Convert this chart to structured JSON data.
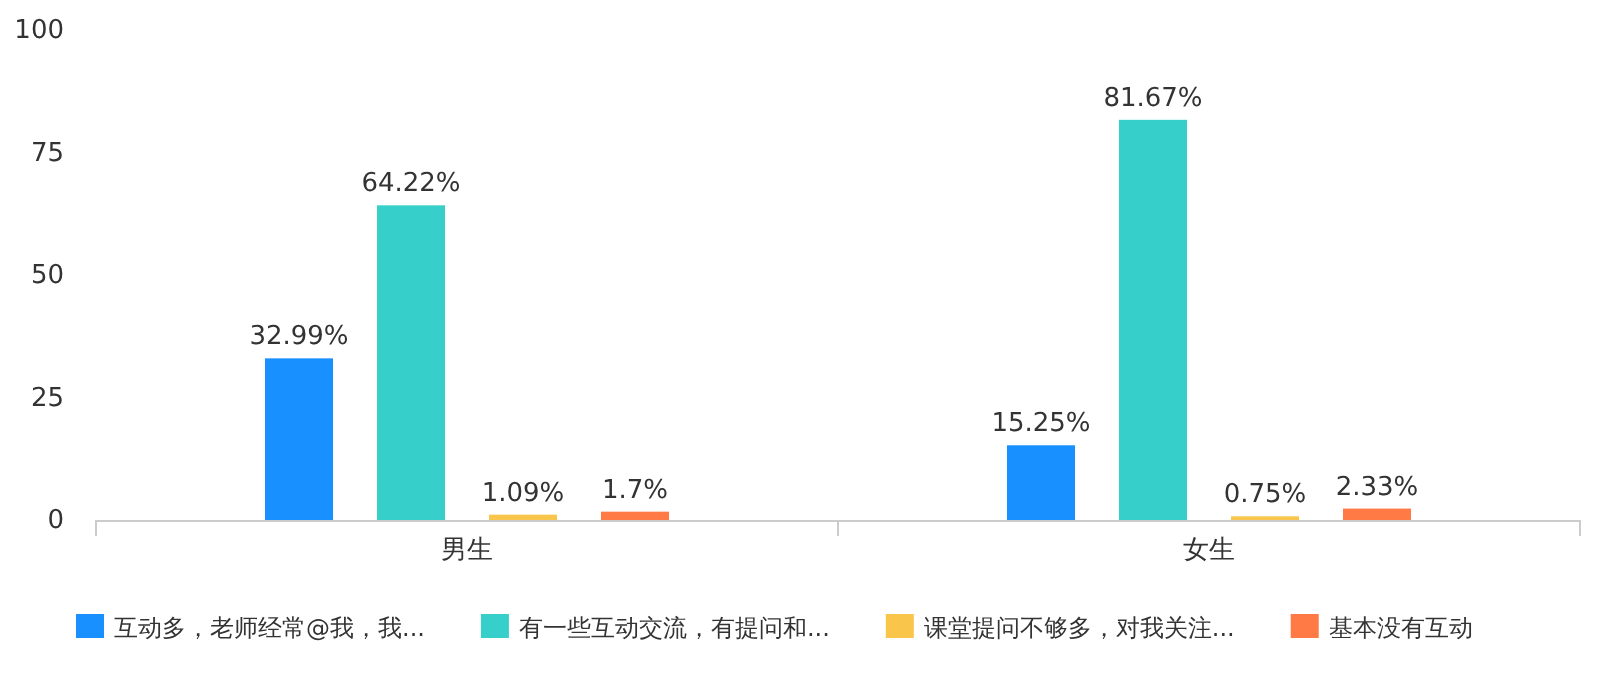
{
  "chart_data": {
    "type": "bar",
    "categories": [
      "男生",
      "女生"
    ],
    "series": [
      {
        "name": "互动多，老师经常@我，我...",
        "color": "#1890ff",
        "values": [
          32.99,
          15.25
        ],
        "value_labels": [
          "32.99%",
          "15.25%"
        ]
      },
      {
        "name": "有一些互动交流，有提问和...",
        "color": "#36cfc9",
        "values": [
          64.22,
          81.67
        ],
        "value_labels": [
          "64.22%",
          "81.67%"
        ]
      },
      {
        "name": "课堂提问不够多，对我关注...",
        "color": "#fac54b",
        "values": [
          1.09,
          0.75
        ],
        "value_labels": [
          "1.09%",
          "0.75%"
        ]
      },
      {
        "name": "基本没有互动",
        "color": "#ff7a45",
        "values": [
          1.7,
          2.33
        ],
        "value_labels": [
          "1.7%",
          "2.33%"
        ]
      }
    ],
    "ylim": [
      0,
      100
    ],
    "yticks": [
      0,
      25,
      50,
      75,
      100
    ],
    "legend": "bottom"
  }
}
